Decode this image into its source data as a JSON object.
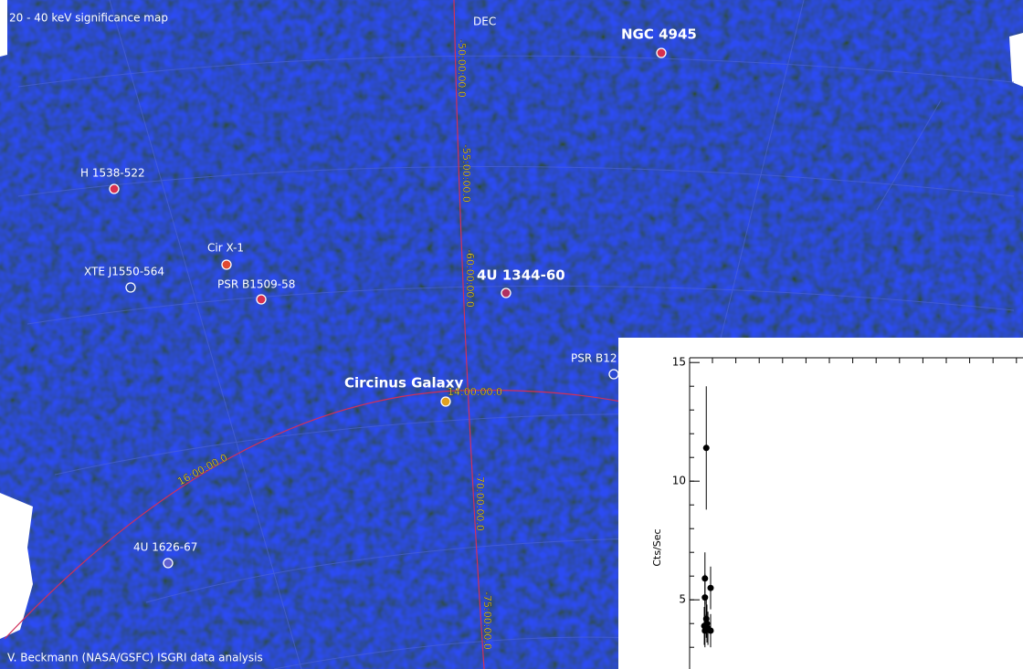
{
  "map": {
    "title": "20 - 40 keV significance map",
    "credit": "V. Beckmann (NASA/GSFC) ISGRI data analysis",
    "axis_label": "DEC",
    "sources": [
      {
        "label": "NGC 4945"
      },
      {
        "label": "H 1538-522"
      },
      {
        "label": "Cir X-1"
      },
      {
        "label": "XTE J1550-564"
      },
      {
        "label": "PSR B1509-58"
      },
      {
        "label": "4U 1344-60"
      },
      {
        "label": "PSR B12"
      },
      {
        "label": "Circinus Galaxy"
      },
      {
        "label": "4U 1626-67"
      }
    ],
    "grid_labels": [
      "-50:00:00.0",
      "-55:00:00.0",
      "-60:00:00.0",
      "14:00:00.0",
      "16:00:00.0",
      "-70:00:00.0",
      "-75:00:00.0"
    ]
  },
  "chart_data": {
    "type": "scatter",
    "ylabel": "Cts/Sec",
    "x": [
      5,
      4.6,
      4.6,
      6.3,
      5,
      4.4,
      5.2,
      6.3,
      4.6,
      5.5
    ],
    "xlim": [
      0,
      100
    ],
    "ylim": [
      2.2,
      15.2
    ],
    "yticks": [
      5,
      10,
      15
    ],
    "values": [
      11.4,
      5.9,
      5.1,
      5.5,
      4.2,
      3.9,
      4.0,
      3.7,
      3.7,
      3.8
    ],
    "errors": [
      2.6,
      1.1,
      1.0,
      0.9,
      0.8,
      0.8,
      0.8,
      0.7,
      0.7,
      0.7
    ],
    "color": "#000000"
  }
}
